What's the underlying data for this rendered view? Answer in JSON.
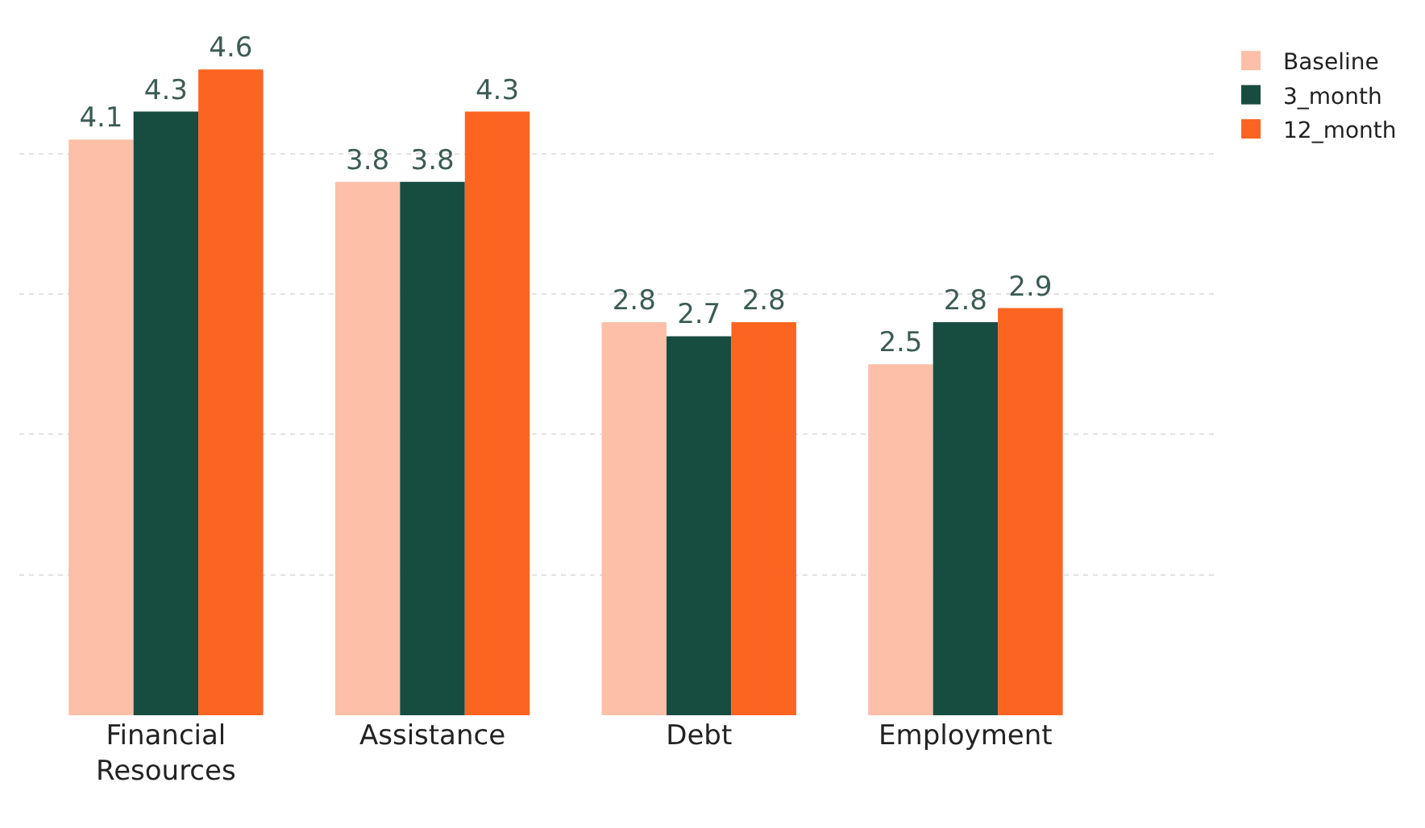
{
  "chart_data": {
    "type": "bar",
    "categories": [
      "Financial Resources",
      "Assistance",
      "Debt",
      "Employment"
    ],
    "series": [
      {
        "name": "Baseline",
        "color": "#fdbfa8",
        "values": [
          4.1,
          3.8,
          2.8,
          2.5
        ]
      },
      {
        "name": "3_month",
        "color": "#174c40",
        "values": [
          4.3,
          3.8,
          2.7,
          2.8
        ]
      },
      {
        "name": "12_month",
        "color": "#fc6421",
        "values": [
          4.6,
          4.3,
          2.8,
          2.9
        ]
      }
    ],
    "tick_labels": "x",
    "grid": "y",
    "data_labels": true,
    "legend": "top right"
  }
}
